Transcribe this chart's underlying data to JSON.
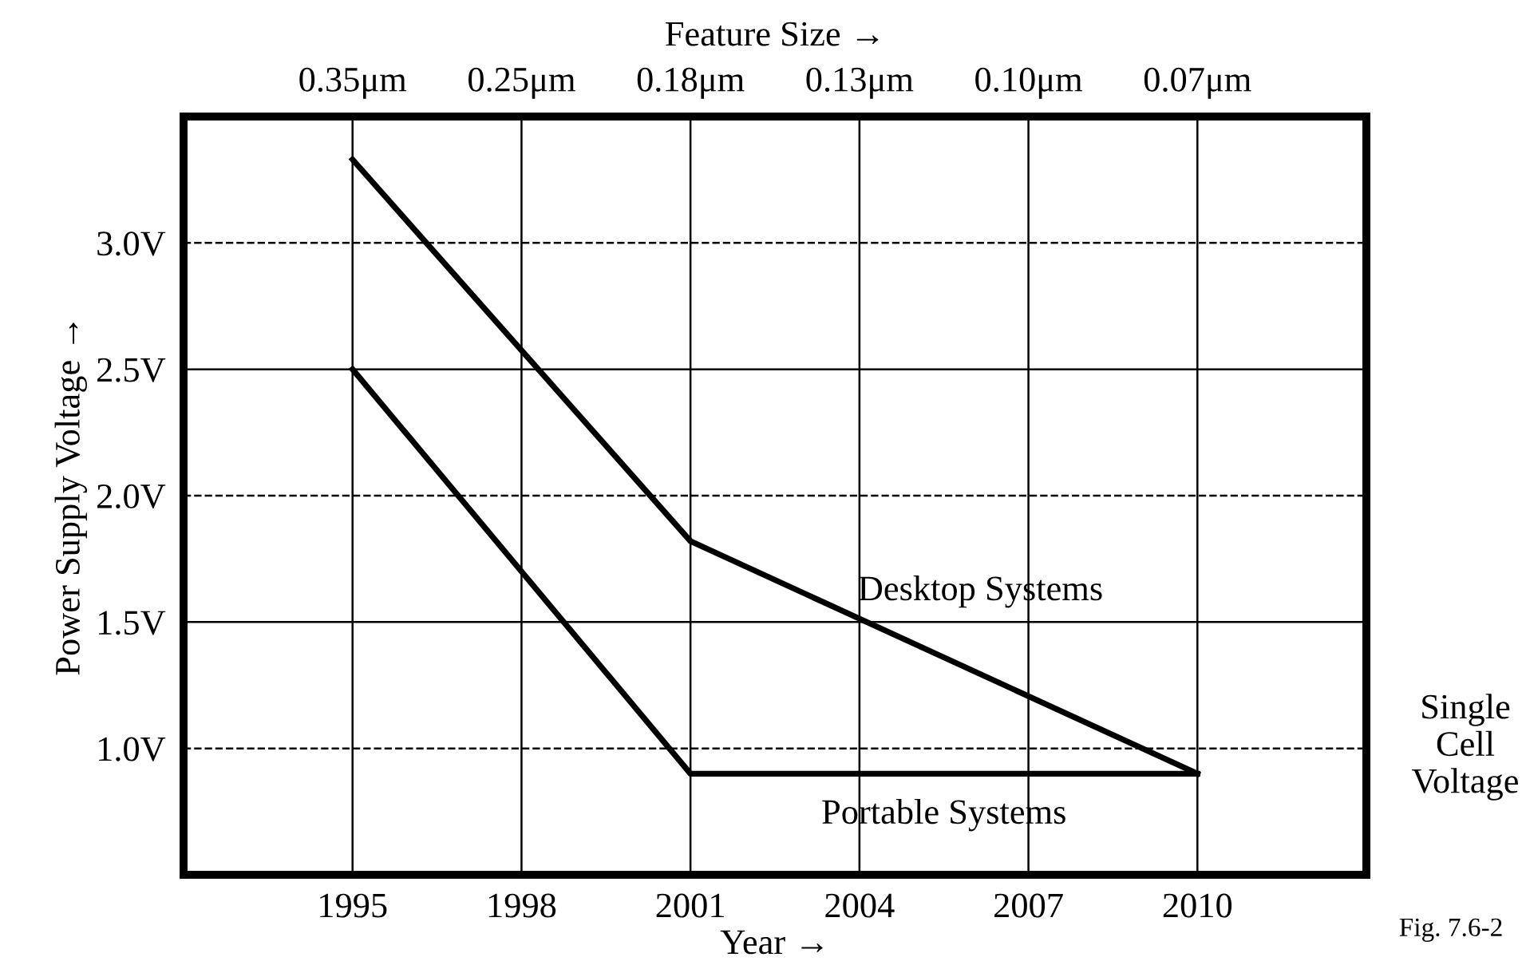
{
  "chart_data": {
    "type": "line",
    "xlabel": "Year →",
    "ylabel": "Power Supply Voltage →",
    "x2label": "Feature Size →",
    "series": [
      {
        "name": "Desktop Systems",
        "color": "#000000",
        "x": [
          1995,
          2001,
          2010
        ],
        "values": [
          3.33,
          1.82,
          0.9
        ]
      },
      {
        "name": "Portable Systems",
        "color": "#000000",
        "x": [
          1995,
          2001,
          2010
        ],
        "values": [
          2.5,
          0.9,
          0.9
        ]
      }
    ],
    "xlim": [
      1992,
      2013
    ],
    "xticks": [
      1995,
      1998,
      2001,
      2004,
      2007,
      2010
    ],
    "ylim": [
      0.5,
      3.5
    ],
    "yticks": [
      {
        "value": 1.0,
        "label": "1.0V"
      },
      {
        "value": 1.5,
        "label": "1.5V"
      },
      {
        "value": 2.0,
        "label": "2.0V"
      },
      {
        "value": 2.5,
        "label": "2.5V"
      },
      {
        "value": 3.0,
        "label": "3.0V"
      }
    ],
    "grid": true,
    "legend": false,
    "marker": "none",
    "line_style": "solid",
    "annotations": [
      "Single\nCell\nVoltage",
      "Fig. 7.6-2",
      "0.35μm",
      "0.25μm",
      "0.18μm",
      "0.13μm",
      "0.10μm",
      "0.07μm"
    ]
  }
}
